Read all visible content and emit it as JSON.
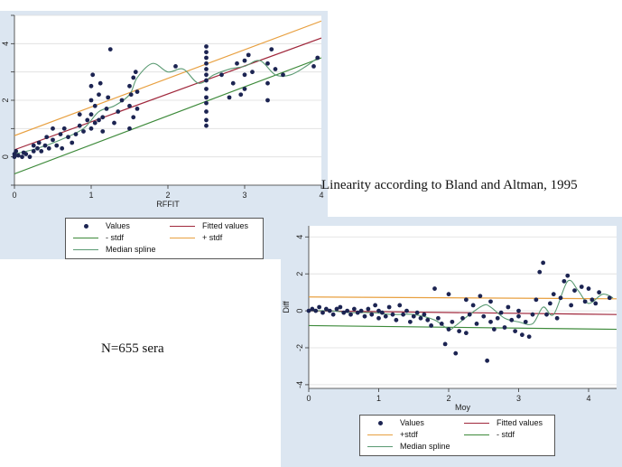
{
  "captions": {
    "title": "Linearity according to Bland and Altman, 1995",
    "sample": "N=655 sera"
  },
  "colors": {
    "panel_bg": "#dce6f1",
    "points": "#1c2452",
    "fitted": "#a0283c",
    "plus_stdf": "#e8a040",
    "minus_stdf": "#3d8a3a",
    "spline": "#5a9a72",
    "grid": "#dddddd"
  },
  "chart_data": [
    {
      "type": "scatter",
      "title": "",
      "xlabel": "RFFIT",
      "ylabel": "",
      "xlim": [
        0,
        4
      ],
      "ylim": [
        -1,
        5
      ],
      "xticks": [
        "0",
        "1",
        "2",
        "3",
        "4"
      ],
      "yticks_visible": [
        "0",
        "2",
        "4"
      ],
      "grid": true,
      "legend_position": "bottom",
      "legend": [
        "Values",
        "Fitted values",
        "- stdf",
        "+ stdf",
        "Median spline"
      ],
      "series": [
        {
          "name": "Values",
          "points": [
            [
              0.0,
              0.0
            ],
            [
              0.0,
              0.1
            ],
            [
              0.02,
              0.2
            ],
            [
              0.05,
              0.05
            ],
            [
              0.1,
              0.0
            ],
            [
              0.12,
              0.15
            ],
            [
              0.15,
              0.1
            ],
            [
              0.2,
              0.0
            ],
            [
              0.25,
              0.2
            ],
            [
              0.25,
              0.4
            ],
            [
              0.3,
              0.3
            ],
            [
              0.32,
              0.5
            ],
            [
              0.35,
              0.2
            ],
            [
              0.4,
              0.4
            ],
            [
              0.42,
              0.7
            ],
            [
              0.45,
              0.3
            ],
            [
              0.5,
              0.6
            ],
            [
              0.5,
              1.0
            ],
            [
              0.55,
              0.4
            ],
            [
              0.6,
              0.8
            ],
            [
              0.62,
              0.3
            ],
            [
              0.65,
              1.0
            ],
            [
              0.7,
              0.7
            ],
            [
              0.75,
              0.5
            ],
            [
              0.8,
              0.8
            ],
            [
              0.85,
              1.1
            ],
            [
              0.85,
              1.5
            ],
            [
              0.9,
              0.9
            ],
            [
              0.95,
              1.3
            ],
            [
              1.0,
              1.0
            ],
            [
              1.0,
              1.5
            ],
            [
              1.0,
              2.0
            ],
            [
              1.0,
              2.5
            ],
            [
              1.02,
              2.9
            ],
            [
              1.05,
              1.2
            ],
            [
              1.05,
              1.8
            ],
            [
              1.1,
              1.3
            ],
            [
              1.1,
              2.2
            ],
            [
              1.12,
              2.6
            ],
            [
              1.15,
              0.9
            ],
            [
              1.15,
              1.4
            ],
            [
              1.2,
              1.7
            ],
            [
              1.22,
              2.1
            ],
            [
              1.25,
              3.8
            ],
            [
              1.3,
              1.2
            ],
            [
              1.35,
              1.6
            ],
            [
              1.4,
              2.0
            ],
            [
              1.5,
              1.0
            ],
            [
              1.5,
              1.8
            ],
            [
              1.5,
              2.5
            ],
            [
              1.52,
              2.2
            ],
            [
              1.55,
              1.4
            ],
            [
              1.55,
              2.8
            ],
            [
              1.58,
              3.0
            ],
            [
              1.6,
              1.7
            ],
            [
              1.6,
              2.3
            ],
            [
              2.1,
              3.2
            ],
            [
              2.5,
              1.1
            ],
            [
              2.5,
              1.3
            ],
            [
              2.5,
              1.6
            ],
            [
              2.5,
              1.9
            ],
            [
              2.5,
              2.1
            ],
            [
              2.5,
              2.4
            ],
            [
              2.5,
              2.7
            ],
            [
              2.5,
              2.9
            ],
            [
              2.5,
              3.1
            ],
            [
              2.5,
              3.3
            ],
            [
              2.5,
              3.5
            ],
            [
              2.5,
              3.7
            ],
            [
              2.5,
              3.9
            ],
            [
              2.7,
              2.9
            ],
            [
              2.8,
              2.1
            ],
            [
              2.85,
              2.6
            ],
            [
              2.9,
              3.3
            ],
            [
              2.95,
              2.2
            ],
            [
              3.0,
              2.4
            ],
            [
              3.0,
              2.9
            ],
            [
              3.0,
              3.4
            ],
            [
              3.05,
              3.6
            ],
            [
              3.1,
              3.0
            ],
            [
              3.3,
              2.0
            ],
            [
              3.3,
              2.6
            ],
            [
              3.3,
              3.3
            ],
            [
              3.35,
              3.8
            ],
            [
              3.4,
              3.1
            ],
            [
              3.5,
              2.9
            ],
            [
              3.9,
              3.2
            ],
            [
              3.95,
              3.5
            ]
          ]
        },
        {
          "name": "Fitted values",
          "x": [
            0,
            4
          ],
          "y": [
            0.25,
            4.2
          ]
        },
        {
          "name": "+ stdf",
          "x": [
            0,
            4
          ],
          "y": [
            0.75,
            4.8
          ]
        },
        {
          "name": "- stdf",
          "x": [
            0,
            4
          ],
          "y": [
            -0.6,
            3.5
          ]
        },
        {
          "name": "Median spline",
          "x": [
            0,
            0.3,
            0.6,
            0.9,
            1.1,
            1.3,
            1.5,
            1.6,
            1.8,
            2.0,
            2.2,
            2.4,
            2.6,
            2.8,
            3.0,
            3.2,
            3.4,
            3.6,
            3.8,
            3.95
          ],
          "y": [
            0.1,
            0.3,
            0.6,
            1.0,
            1.6,
            1.8,
            2.2,
            2.8,
            3.3,
            3.0,
            3.1,
            2.6,
            2.9,
            3.1,
            3.2,
            3.4,
            2.9,
            2.9,
            3.2,
            3.5
          ]
        }
      ]
    },
    {
      "type": "scatter",
      "title": "",
      "xlabel": "Moy",
      "ylabel": "Diff",
      "xlim": [
        0,
        4.4
      ],
      "ylim": [
        -4.2,
        4.6
      ],
      "xticks": [
        "0",
        "1",
        "2",
        "3",
        "4"
      ],
      "yticks": [
        "-4",
        "-2",
        "0",
        "2",
        "4"
      ],
      "grid": true,
      "legend_position": "bottom",
      "legend": [
        "Values",
        "Fitted values",
        "+stdf",
        "- stdf",
        "Median spline"
      ],
      "series": [
        {
          "name": "Values",
          "points": [
            [
              0.0,
              0.0
            ],
            [
              0.05,
              0.1
            ],
            [
              0.1,
              0.0
            ],
            [
              0.15,
              0.2
            ],
            [
              0.2,
              -0.1
            ],
            [
              0.25,
              0.1
            ],
            [
              0.3,
              0.0
            ],
            [
              0.35,
              -0.2
            ],
            [
              0.4,
              0.1
            ],
            [
              0.45,
              0.2
            ],
            [
              0.5,
              -0.1
            ],
            [
              0.55,
              0.0
            ],
            [
              0.6,
              -0.2
            ],
            [
              0.65,
              0.1
            ],
            [
              0.7,
              -0.1
            ],
            [
              0.75,
              0.0
            ],
            [
              0.8,
              -0.3
            ],
            [
              0.85,
              0.1
            ],
            [
              0.9,
              -0.2
            ],
            [
              0.95,
              0.3
            ],
            [
              1.0,
              0.0
            ],
            [
              1.0,
              -0.4
            ],
            [
              1.05,
              -0.1
            ],
            [
              1.1,
              -0.3
            ],
            [
              1.15,
              0.2
            ],
            [
              1.2,
              -0.2
            ],
            [
              1.25,
              -0.5
            ],
            [
              1.3,
              0.3
            ],
            [
              1.35,
              -0.2
            ],
            [
              1.4,
              0.0
            ],
            [
              1.45,
              -0.6
            ],
            [
              1.5,
              -0.3
            ],
            [
              1.55,
              -0.1
            ],
            [
              1.6,
              -0.4
            ],
            [
              1.65,
              -0.2
            ],
            [
              1.7,
              -0.5
            ],
            [
              1.75,
              -0.8
            ],
            [
              1.8,
              1.2
            ],
            [
              1.85,
              -0.4
            ],
            [
              1.9,
              -0.7
            ],
            [
              1.95,
              -1.8
            ],
            [
              2.0,
              -1.0
            ],
            [
              2.0,
              0.9
            ],
            [
              2.05,
              -0.6
            ],
            [
              2.1,
              -2.3
            ],
            [
              2.15,
              -1.1
            ],
            [
              2.2,
              -0.4
            ],
            [
              2.25,
              0.6
            ],
            [
              2.25,
              -1.2
            ],
            [
              2.3,
              -0.2
            ],
            [
              2.35,
              0.3
            ],
            [
              2.4,
              -0.7
            ],
            [
              2.45,
              0.8
            ],
            [
              2.5,
              -0.3
            ],
            [
              2.55,
              -2.7
            ],
            [
              2.6,
              -0.6
            ],
            [
              2.6,
              0.5
            ],
            [
              2.65,
              -1.0
            ],
            [
              2.7,
              -0.4
            ],
            [
              2.75,
              -0.1
            ],
            [
              2.8,
              -0.9
            ],
            [
              2.85,
              0.2
            ],
            [
              2.9,
              -0.5
            ],
            [
              2.95,
              -1.1
            ],
            [
              3.0,
              -0.3
            ],
            [
              3.0,
              0.0
            ],
            [
              3.05,
              -1.3
            ],
            [
              3.1,
              -0.6
            ],
            [
              3.15,
              -1.4
            ],
            [
              3.2,
              -0.2
            ],
            [
              3.25,
              0.6
            ],
            [
              3.3,
              2.1
            ],
            [
              3.35,
              2.6
            ],
            [
              3.4,
              -0.2
            ],
            [
              3.45,
              0.4
            ],
            [
              3.5,
              0.9
            ],
            [
              3.55,
              -0.4
            ],
            [
              3.6,
              0.7
            ],
            [
              3.65,
              1.6
            ],
            [
              3.7,
              1.9
            ],
            [
              3.75,
              0.3
            ],
            [
              3.8,
              1.1
            ],
            [
              3.9,
              1.3
            ],
            [
              3.95,
              0.5
            ],
            [
              4.0,
              1.2
            ],
            [
              4.05,
              0.6
            ],
            [
              4.1,
              0.4
            ],
            [
              4.15,
              1.0
            ],
            [
              4.3,
              0.7
            ]
          ]
        },
        {
          "name": "Fitted values",
          "x": [
            0,
            4.4
          ],
          "y": [
            0.0,
            -0.2
          ]
        },
        {
          "name": "+stdf",
          "x": [
            0,
            4.4
          ],
          "y": [
            0.75,
            0.65
          ]
        },
        {
          "name": "- stdf",
          "x": [
            0,
            4.4
          ],
          "y": [
            -0.8,
            -1.0
          ]
        },
        {
          "name": "Median spline",
          "x": [
            0,
            0.3,
            0.6,
            0.9,
            1.2,
            1.5,
            1.8,
            2.0,
            2.1,
            2.3,
            2.5,
            2.6,
            2.8,
            3.0,
            3.2,
            3.35,
            3.5,
            3.7,
            3.85,
            4.0,
            4.2,
            4.35
          ],
          "y": [
            0.0,
            0.0,
            -0.1,
            -0.1,
            -0.2,
            -0.2,
            -0.5,
            -1.0,
            -0.8,
            -0.2,
            0.3,
            0.2,
            -0.4,
            -0.6,
            -0.7,
            0.2,
            -0.2,
            1.6,
            1.1,
            0.4,
            0.9,
            0.7
          ]
        }
      ]
    }
  ]
}
